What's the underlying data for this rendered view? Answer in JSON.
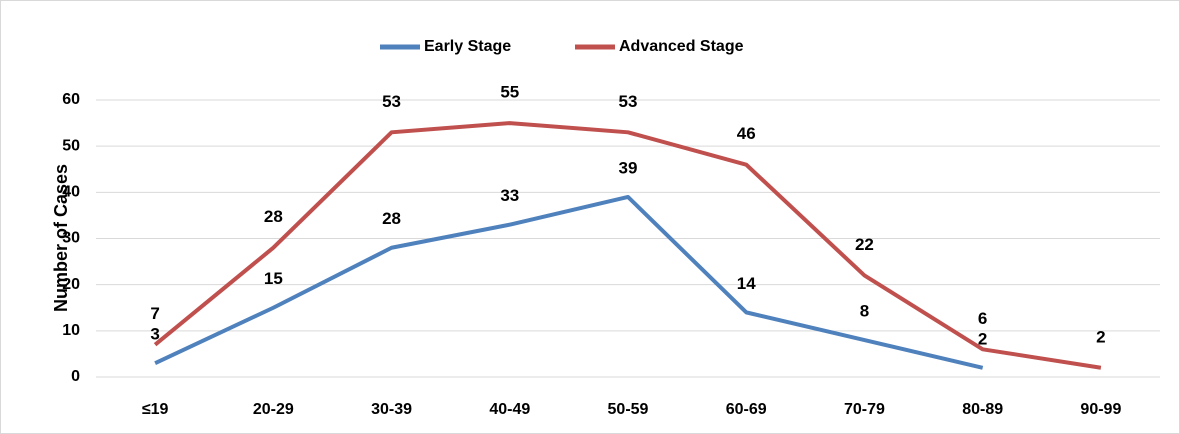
{
  "chart_data": {
    "type": "line",
    "ylabel": "Number of Cases",
    "categories": [
      "≤19",
      "20-29",
      "30-39",
      "40-49",
      "50-59",
      "60-69",
      "70-79",
      "80-89",
      "90-99"
    ],
    "series": [
      {
        "name": "Early Stage",
        "color": "#4f81bd",
        "values": [
          3,
          15,
          28,
          33,
          39,
          14,
          8,
          2,
          null
        ]
      },
      {
        "name": "Advanced Stage",
        "color": "#c0504d",
        "values": [
          7,
          28,
          53,
          55,
          53,
          46,
          22,
          6,
          2
        ]
      }
    ],
    "ylim": [
      0,
      60
    ],
    "yticks": [
      0,
      10,
      20,
      30,
      40,
      50,
      60
    ],
    "grid": true,
    "legend": "top"
  }
}
